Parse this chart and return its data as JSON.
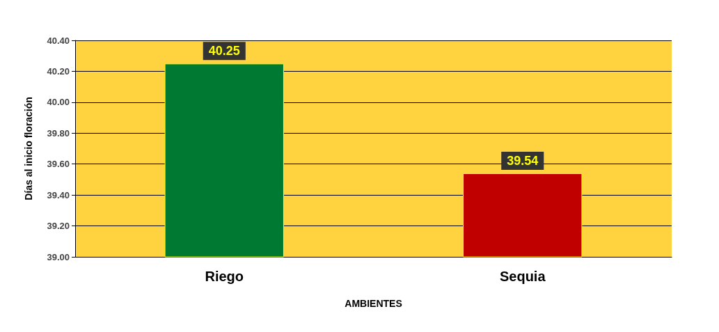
{
  "chart_data": {
    "type": "bar",
    "categories": [
      "Riego",
      "Sequia"
    ],
    "values": [
      40.25,
      39.54
    ],
    "colors": [
      "#007a33",
      "#c00000"
    ],
    "ylabel": "Días al inicio floración",
    "xlabel": "AMBIENTES",
    "ylim": [
      39.0,
      40.4
    ],
    "yticks": [
      {
        "value": 39.0,
        "label": "39.00"
      },
      {
        "value": 39.2,
        "label": "39.20"
      },
      {
        "value": 39.4,
        "label": "39.40"
      },
      {
        "value": 39.6,
        "label": "39.60"
      },
      {
        "value": 39.8,
        "label": "39.80"
      },
      {
        "value": 40.0,
        "label": "40.00"
      },
      {
        "value": 40.2,
        "label": "40.20"
      },
      {
        "value": 40.4,
        "label": "40.40"
      }
    ],
    "grid": "y",
    "data_labels": true
  }
}
